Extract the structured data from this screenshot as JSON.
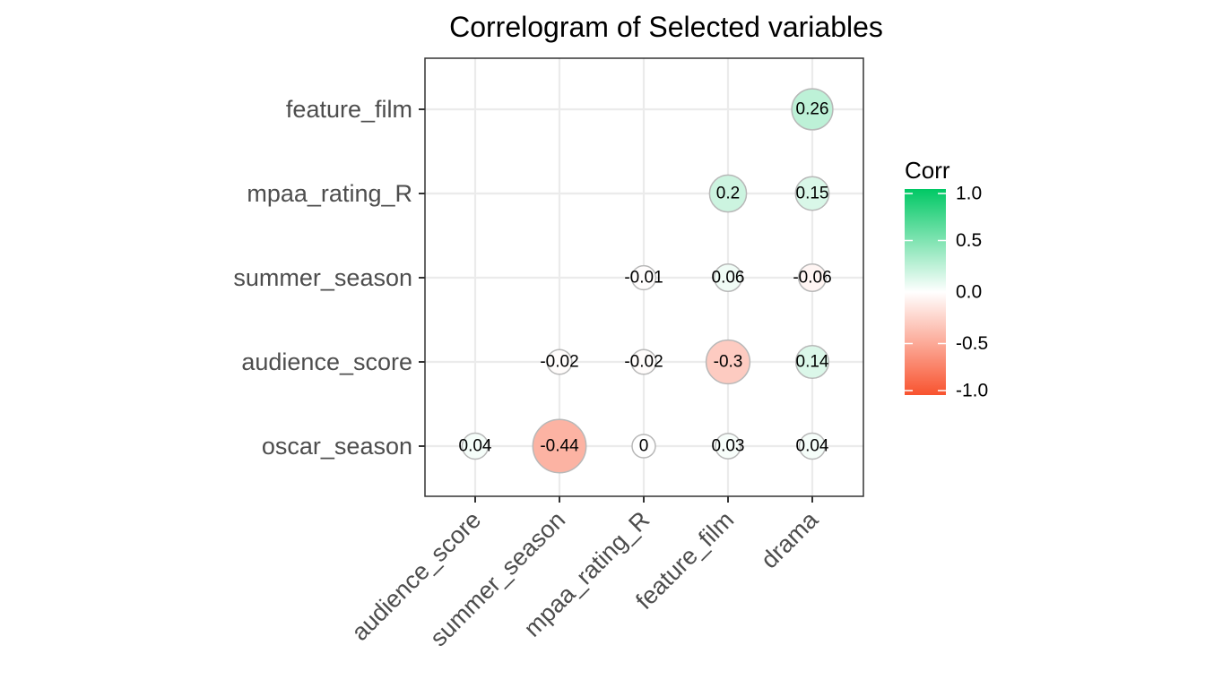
{
  "chart_data": {
    "type": "heatmap",
    "subtype": "correlogram-circle",
    "title": "Correlogram of Selected variables",
    "x_categories": [
      "audience_score",
      "summer_season",
      "mpaa_rating_R",
      "feature_film",
      "drama"
    ],
    "y_categories": [
      "oscar_season",
      "audience_score",
      "summer_season",
      "mpaa_rating_R",
      "feature_film"
    ],
    "cells": [
      {
        "x": "audience_score",
        "y": "oscar_season",
        "value": 0.04,
        "label": "0.04"
      },
      {
        "x": "summer_season",
        "y": "oscar_season",
        "value": -0.44,
        "label": "-0.44"
      },
      {
        "x": "mpaa_rating_R",
        "y": "oscar_season",
        "value": 0,
        "label": "0"
      },
      {
        "x": "feature_film",
        "y": "oscar_season",
        "value": 0.03,
        "label": "0.03"
      },
      {
        "x": "drama",
        "y": "oscar_season",
        "value": 0.04,
        "label": "0.04"
      },
      {
        "x": "summer_season",
        "y": "audience_score",
        "value": -0.02,
        "label": "-0.02"
      },
      {
        "x": "mpaa_rating_R",
        "y": "audience_score",
        "value": -0.02,
        "label": "-0.02"
      },
      {
        "x": "feature_film",
        "y": "audience_score",
        "value": -0.3,
        "label": "-0.3"
      },
      {
        "x": "drama",
        "y": "audience_score",
        "value": 0.14,
        "label": "0.14"
      },
      {
        "x": "mpaa_rating_R",
        "y": "summer_season",
        "value": -0.01,
        "label": "-0.01"
      },
      {
        "x": "feature_film",
        "y": "summer_season",
        "value": 0.06,
        "label": "0.06"
      },
      {
        "x": "drama",
        "y": "summer_season",
        "value": -0.06,
        "label": "-0.06"
      },
      {
        "x": "feature_film",
        "y": "mpaa_rating_R",
        "value": 0.2,
        "label": "0.2"
      },
      {
        "x": "drama",
        "y": "mpaa_rating_R",
        "value": 0.15,
        "label": "0.15"
      },
      {
        "x": "drama",
        "y": "feature_film",
        "value": 0.26,
        "label": "0.26"
      }
    ],
    "legend": {
      "title": "Corr",
      "placement": "right",
      "range": [
        -1,
        1
      ],
      "ticks": [
        1,
        0.5,
        0,
        -0.5,
        -1
      ],
      "tick_labels": [
        "1.0",
        "0.5",
        "0.0",
        "-0.5",
        "-1.0"
      ],
      "colors": {
        "low": "#F8532F",
        "mid": "#FFFFFF",
        "high": "#00C864"
      }
    },
    "grid": true,
    "colors": {
      "panel_border": "#333333",
      "grid": "#ebebeb",
      "circle_outline": "#b8b8b8"
    }
  }
}
